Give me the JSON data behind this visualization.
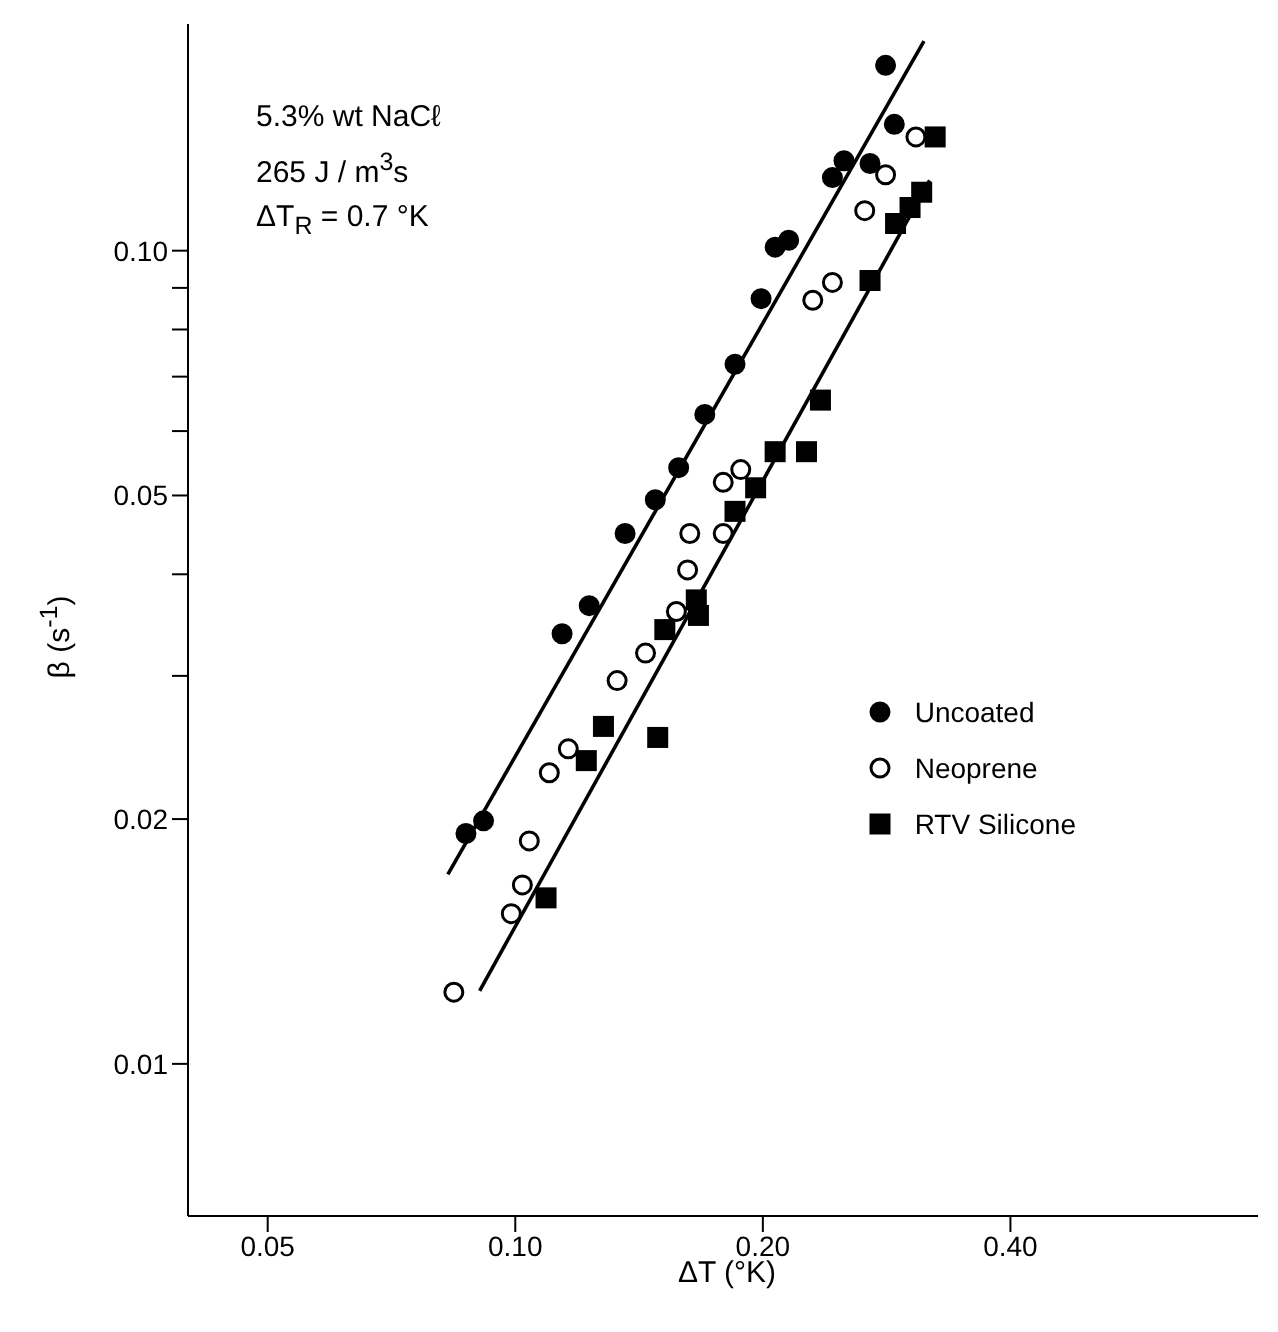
{
  "chart_data": {
    "type": "scatter",
    "xlabel": "ΔT (°K)",
    "ylabel": "β (s$^{-1}$)",
    "annotations": [
      "5.3% wt NaCℓ",
      "265 J / m$^{3}$s",
      "ΔT$_{R}$ = 0.7 °K"
    ],
    "log": "xy",
    "xlim": [
      0.04,
      0.8
    ],
    "ylim": [
      0.0065,
      0.19
    ],
    "xticks": [
      0.05,
      {
        "value": 0.1,
        "label": "0.10"
      },
      {
        "value": 0.2,
        "label": "0.20"
      },
      {
        "value": 0.4,
        "label": "0.40"
      }
    ],
    "yticks": [
      0.01,
      0.02,
      {
        "value": 0.03,
        "label": null
      },
      {
        "value": 0.04,
        "label": null
      },
      0.05,
      {
        "value": 0.06,
        "label": null
      },
      {
        "value": 0.07,
        "label": null
      },
      {
        "value": 0.08,
        "label": null
      },
      {
        "value": 0.09,
        "label": null
      },
      {
        "value": 0.1,
        "label": "0.10"
      }
    ],
    "grid": false,
    "legend": "right",
    "series": [
      {
        "name": "Uncoated",
        "color": "#000000",
        "marker": "circle",
        "x": [
          0.282,
          0.289,
          0.27,
          0.251,
          0.243,
          0.215,
          0.207,
          0.199,
          0.185,
          0.17,
          0.158,
          0.148,
          0.136,
          0.123,
          0.114,
          0.0915,
          0.0871
        ],
        "values": [
          0.169,
          0.143,
          0.128,
          0.129,
          0.123,
          0.103,
          0.101,
          0.0873,
          0.0725,
          0.0629,
          0.0541,
          0.0494,
          0.0449,
          0.0366,
          0.0338,
          0.0199,
          0.0192
        ]
      },
      {
        "name": "Neoprene",
        "color": "#ffffff",
        "marker": "circle",
        "x": [
          0.307,
          0.282,
          0.266,
          0.243,
          0.23,
          0.188,
          0.179,
          0.179,
          0.163,
          0.162,
          0.157,
          0.144,
          0.133,
          0.116,
          0.11,
          0.104,
          0.102,
          0.0989,
          0.0842
        ],
        "values": [
          0.138,
          0.124,
          0.112,
          0.0914,
          0.0869,
          0.0538,
          0.0519,
          0.0449,
          0.0449,
          0.0405,
          0.036,
          0.032,
          0.0296,
          0.0244,
          0.0228,
          0.0188,
          0.0166,
          0.0153,
          0.01225
        ]
      },
      {
        "name": "RTV Silicone",
        "color": "#000000",
        "marker": "square",
        "x": [
          0.324,
          0.312,
          0.302,
          0.29,
          0.27,
          0.235,
          0.226,
          0.207,
          0.196,
          0.185,
          0.166,
          0.167,
          0.152,
          0.128,
          0.149,
          0.122,
          0.109
        ],
        "values": [
          0.138,
          0.118,
          0.113,
          0.108,
          0.0919,
          0.0655,
          0.0566,
          0.0566,
          0.0511,
          0.0478,
          0.0372,
          0.0356,
          0.0342,
          0.026,
          0.0252,
          0.0236,
          0.016
        ]
      },
      {
        "type": "line",
        "color": "#000000",
        "marker": "none",
        "x": [
          0.0828,
          0.314
        ],
        "values": [
          0.0171,
          0.181
        ]
      },
      {
        "type": "line",
        "color": "#000000",
        "marker": "none",
        "x": [
          0.0905,
          0.319
        ],
        "values": [
          0.0123,
          0.122
        ]
      }
    ]
  }
}
